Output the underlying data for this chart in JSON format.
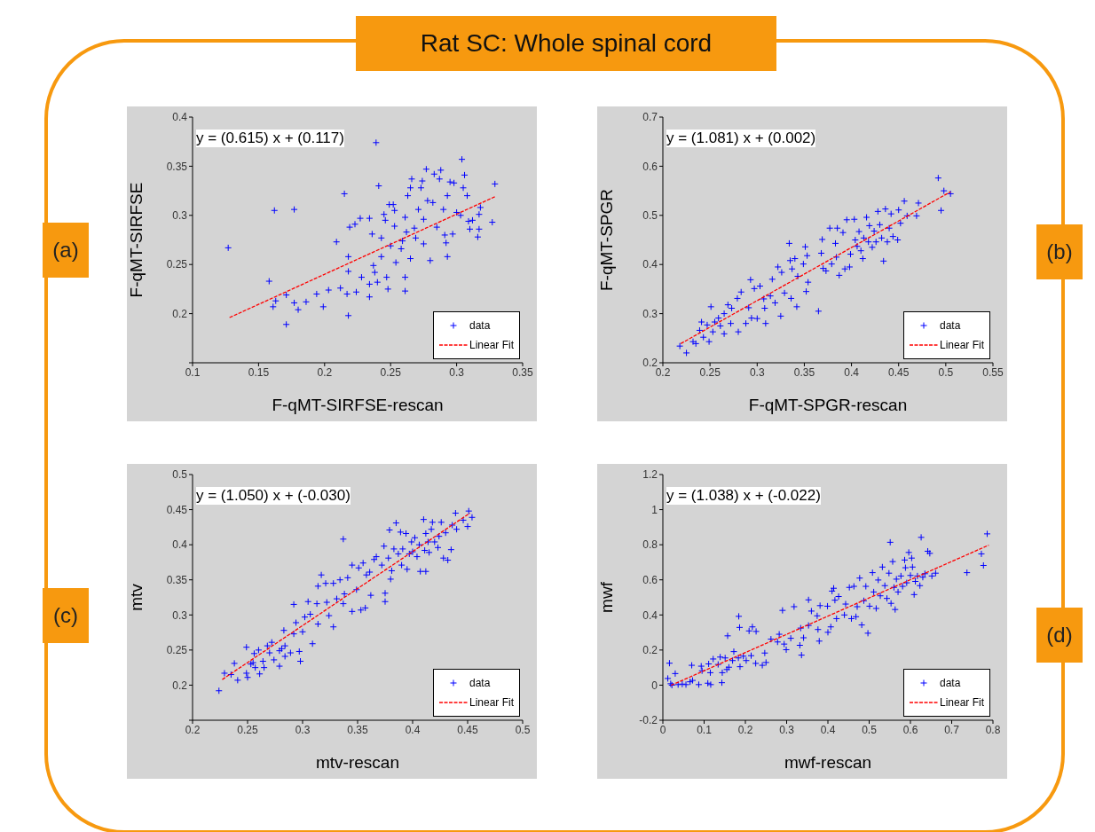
{
  "chart_data": [
    {
      "type": "scatter",
      "xlabel": "F-qMT-SIRFSE-rescan",
      "ylabel": "F-qMT-SIRFSE",
      "annotations": [
        "y = (0.615) x + (0.117)",
        "(a)",
        "Rat SC: Whole spinal cord"
      ],
      "xlim": [
        0.1,
        0.35
      ],
      "xticks": [
        0.1,
        0.15,
        0.2,
        0.25,
        0.3,
        0.35
      ],
      "ylim": [
        0.15,
        0.4
      ],
      "yticks": [
        {
          "value": 0.15,
          "label": null
        },
        0.2,
        0.25,
        0.3,
        0.35,
        0.4
      ],
      "legend": "bottom right",
      "series": [
        {
          "name": "data",
          "type": "scatter",
          "marker": "cross",
          "color": "#0000ff",
          "x": [
            0.127,
            0.162,
            0.177,
            0.158,
            0.161,
            0.163,
            0.171,
            0.171,
            0.177,
            0.18,
            0.186,
            0.194,
            0.199,
            0.203,
            0.209,
            0.215,
            0.212,
            0.217,
            0.218,
            0.218,
            0.219,
            0.218,
            0.223,
            0.227,
            0.224,
            0.228,
            0.234,
            0.234,
            0.234,
            0.236,
            0.237,
            0.238,
            0.241,
            0.239,
            0.243,
            0.24,
            0.243,
            0.245,
            0.246,
            0.247,
            0.248,
            0.249,
            0.252,
            0.25,
            0.253,
            0.253,
            0.254,
            0.258,
            0.259,
            0.261,
            0.261,
            0.261,
            0.262,
            0.263,
            0.265,
            0.265,
            0.266,
            0.268,
            0.269,
            0.271,
            0.273,
            0.274,
            0.275,
            0.275,
            0.277,
            0.278,
            0.28,
            0.282,
            0.283,
            0.285,
            0.287,
            0.288,
            0.29,
            0.291,
            0.292,
            0.293,
            0.293,
            0.295,
            0.297,
            0.298,
            0.3,
            0.303,
            0.304,
            0.305,
            0.306,
            0.308,
            0.309,
            0.31,
            0.312,
            0.316,
            0.317,
            0.318,
            0.317,
            0.327,
            0.329
          ],
          "values": [
            0.267,
            0.305,
            0.306,
            0.233,
            0.207,
            0.213,
            0.189,
            0.219,
            0.211,
            0.204,
            0.212,
            0.22,
            0.207,
            0.224,
            0.273,
            0.322,
            0.226,
            0.22,
            0.198,
            0.258,
            0.288,
            0.243,
            0.291,
            0.297,
            0.222,
            0.237,
            0.297,
            0.217,
            0.23,
            0.281,
            0.249,
            0.242,
            0.33,
            0.374,
            0.277,
            0.232,
            0.258,
            0.301,
            0.295,
            0.237,
            0.225,
            0.311,
            0.311,
            0.269,
            0.305,
            0.289,
            0.252,
            0.266,
            0.274,
            0.223,
            0.237,
            0.298,
            0.283,
            0.32,
            0.328,
            0.256,
            0.337,
            0.287,
            0.277,
            0.306,
            0.328,
            0.335,
            0.296,
            0.271,
            0.347,
            0.315,
            0.254,
            0.313,
            0.342,
            0.288,
            0.337,
            0.346,
            0.306,
            0.28,
            0.272,
            0.258,
            0.32,
            0.334,
            0.281,
            0.333,
            0.303,
            0.3,
            0.357,
            0.328,
            0.341,
            0.32,
            0.294,
            0.286,
            0.295,
            0.278,
            0.301,
            0.308,
            0.286,
            0.293,
            0.332
          ]
        },
        {
          "name": "Linear Fit",
          "type": "line",
          "color": "#ff0000",
          "line_style": "dashed",
          "x": [
            0.128,
            0.329
          ],
          "values": [
            0.196,
            0.319
          ]
        }
      ]
    },
    {
      "type": "scatter",
      "xlabel": "F-qMT-SPGR-rescan",
      "ylabel": "F-qMT-SPGR",
      "annotations": [
        "y = (1.081) x + (0.002)",
        "(b)"
      ],
      "xlim": [
        0.2,
        0.55
      ],
      "xticks": [
        0.2,
        0.25,
        0.3,
        0.35,
        0.4,
        0.45,
        0.5,
        0.55
      ],
      "ylim": [
        0.2,
        0.7
      ],
      "yticks": [
        0.2,
        0.3,
        0.4,
        0.5,
        0.6,
        0.7
      ],
      "legend": "bottom right",
      "series": [
        {
          "name": "data",
          "type": "scatter",
          "marker": "cross",
          "color": "#0000ff",
          "x": [
            0.218,
            0.225,
            0.232,
            0.235,
            0.239,
            0.241,
            0.243,
            0.247,
            0.249,
            0.251,
            0.253,
            0.255,
            0.259,
            0.261,
            0.265,
            0.265,
            0.269,
            0.272,
            0.273,
            0.28,
            0.279,
            0.283,
            0.288,
            0.291,
            0.293,
            0.294,
            0.297,
            0.3,
            0.303,
            0.307,
            0.308,
            0.309,
            0.314,
            0.316,
            0.319,
            0.322,
            0.325,
            0.326,
            0.329,
            0.334,
            0.336,
            0.335,
            0.337,
            0.34,
            0.342,
            0.343,
            0.349,
            0.351,
            0.352,
            0.353,
            0.354,
            0.365,
            0.368,
            0.369,
            0.37,
            0.373,
            0.377,
            0.379,
            0.383,
            0.384,
            0.385,
            0.387,
            0.391,
            0.393,
            0.395,
            0.398,
            0.399,
            0.403,
            0.404,
            0.406,
            0.408,
            0.41,
            0.412,
            0.413,
            0.416,
            0.418,
            0.419,
            0.422,
            0.424,
            0.426,
            0.428,
            0.43,
            0.432,
            0.434,
            0.436,
            0.438,
            0.44,
            0.442,
            0.444,
            0.449,
            0.45,
            0.452,
            0.456,
            0.459,
            0.469,
            0.471,
            0.492,
            0.495,
            0.498,
            0.505
          ],
          "values": [
            0.234,
            0.22,
            0.243,
            0.239,
            0.266,
            0.283,
            0.252,
            0.277,
            0.243,
            0.314,
            0.263,
            0.283,
            0.291,
            0.275,
            0.3,
            0.259,
            0.318,
            0.28,
            0.311,
            0.263,
            0.331,
            0.344,
            0.28,
            0.312,
            0.369,
            0.291,
            0.351,
            0.29,
            0.356,
            0.33,
            0.311,
            0.28,
            0.336,
            0.37,
            0.322,
            0.395,
            0.295,
            0.384,
            0.342,
            0.443,
            0.331,
            0.408,
            0.391,
            0.412,
            0.314,
            0.376,
            0.401,
            0.436,
            0.345,
            0.418,
            0.364,
            0.305,
            0.423,
            0.451,
            0.392,
            0.387,
            0.474,
            0.401,
            0.443,
            0.415,
            0.474,
            0.378,
            0.465,
            0.391,
            0.491,
            0.395,
            0.421,
            0.492,
            0.45,
            0.437,
            0.467,
            0.428,
            0.412,
            0.454,
            0.496,
            0.446,
            0.479,
            0.435,
            0.468,
            0.446,
            0.508,
            0.481,
            0.454,
            0.407,
            0.513,
            0.446,
            0.474,
            0.503,
            0.457,
            0.45,
            0.511,
            0.484,
            0.529,
            0.499,
            0.499,
            0.525,
            0.576,
            0.51,
            0.55,
            0.544
          ]
        },
        {
          "name": "Linear Fit",
          "type": "line",
          "color": "#ff0000",
          "line_style": "dashed",
          "x": [
            0.219,
            0.505
          ],
          "values": [
            0.239,
            0.548
          ]
        }
      ]
    },
    {
      "type": "scatter",
      "xlabel": "mtv-rescan",
      "ylabel": "mtv",
      "annotations": [
        "y = (1.050) x + (-0.030)",
        "(c)"
      ],
      "xlim": [
        0.2,
        0.5
      ],
      "xticks": [
        0.2,
        0.25,
        0.3,
        0.35,
        0.4,
        0.45,
        0.5
      ],
      "ylim": [
        0.15,
        0.5
      ],
      "yticks": [
        {
          "value": 0.15,
          "label": null
        },
        0.2,
        0.25,
        0.3,
        0.35,
        0.4,
        0.45,
        0.5
      ],
      "legend": "bottom right",
      "series": [
        {
          "name": "data",
          "type": "scatter",
          "marker": "cross",
          "color": "#0000ff",
          "x": [
            0.224,
            0.229,
            0.235,
            0.238,
            0.241,
            0.249,
            0.249,
            0.25,
            0.253,
            0.255,
            0.256,
            0.257,
            0.26,
            0.261,
            0.264,
            0.265,
            0.268,
            0.27,
            0.272,
            0.274,
            0.279,
            0.279,
            0.281,
            0.283,
            0.284,
            0.284,
            0.289,
            0.292,
            0.292,
            0.294,
            0.297,
            0.298,
            0.3,
            0.302,
            0.305,
            0.307,
            0.309,
            0.314,
            0.313,
            0.314,
            0.317,
            0.321,
            0.322,
            0.324,
            0.328,
            0.328,
            0.331,
            0.334,
            0.337,
            0.337,
            0.338,
            0.341,
            0.345,
            0.345,
            0.349,
            0.351,
            0.353,
            0.355,
            0.357,
            0.358,
            0.361,
            0.362,
            0.365,
            0.367,
            0.372,
            0.374,
            0.375,
            0.375,
            0.378,
            0.379,
            0.38,
            0.381,
            0.383,
            0.385,
            0.387,
            0.389,
            0.39,
            0.391,
            0.394,
            0.395,
            0.397,
            0.399,
            0.4,
            0.402,
            0.404,
            0.406,
            0.407,
            0.41,
            0.411,
            0.412,
            0.412,
            0.414,
            0.415,
            0.417,
            0.418,
            0.42,
            0.423,
            0.424,
            0.426,
            0.428,
            0.43,
            0.432,
            0.435,
            0.436,
            0.439,
            0.44,
            0.446,
            0.45,
            0.451,
            0.454
          ],
          "values": [
            0.192,
            0.217,
            0.215,
            0.231,
            0.207,
            0.254,
            0.217,
            0.211,
            0.23,
            0.232,
            0.245,
            0.225,
            0.25,
            0.216,
            0.234,
            0.225,
            0.256,
            0.246,
            0.261,
            0.236,
            0.249,
            0.227,
            0.252,
            0.278,
            0.241,
            0.256,
            0.246,
            0.315,
            0.273,
            0.289,
            0.248,
            0.234,
            0.276,
            0.297,
            0.319,
            0.301,
            0.259,
            0.287,
            0.316,
            0.341,
            0.357,
            0.345,
            0.318,
            0.299,
            0.283,
            0.345,
            0.323,
            0.35,
            0.408,
            0.316,
            0.33,
            0.353,
            0.371,
            0.305,
            0.336,
            0.367,
            0.307,
            0.374,
            0.31,
            0.357,
            0.361,
            0.328,
            0.379,
            0.383,
            0.371,
            0.398,
            0.331,
            0.319,
            0.381,
            0.421,
            0.351,
            0.363,
            0.394,
            0.431,
            0.387,
            0.418,
            0.371,
            0.394,
            0.416,
            0.365,
            0.387,
            0.404,
            0.39,
            0.41,
            0.383,
            0.4,
            0.362,
            0.436,
            0.392,
            0.416,
            0.362,
            0.404,
            0.389,
            0.422,
            0.432,
            0.404,
            0.396,
            0.412,
            0.432,
            0.381,
            0.417,
            0.378,
            0.393,
            0.428,
            0.445,
            0.422,
            0.435,
            0.426,
            0.448,
            0.439
          ]
        },
        {
          "name": "Linear Fit",
          "type": "line",
          "color": "#ff0000",
          "line_style": "dashed",
          "x": [
            0.227,
            0.452
          ],
          "values": [
            0.208,
            0.445
          ]
        }
      ]
    },
    {
      "type": "scatter",
      "xlabel": "mwf-rescan",
      "ylabel": "mwf",
      "annotations": [
        "y = (1.038) x + (-0.022)",
        "(d)"
      ],
      "xlim": [
        0,
        0.8
      ],
      "xticks": [
        0,
        0.1,
        0.2,
        0.3,
        0.4,
        0.5,
        0.6,
        0.7,
        0.8
      ],
      "ylim": [
        -0.2,
        1.2
      ],
      "yticks": [
        -0.2,
        0,
        0.2,
        0.4,
        0.6,
        0.8,
        1,
        1.2
      ],
      "legend": "bottom right",
      "series": [
        {
          "name": "data",
          "type": "scatter",
          "marker": "cross",
          "color": "#0000ff",
          "x": [
            0.012,
            0.016,
            0.019,
            0.022,
            0.03,
            0.037,
            0.047,
            0.056,
            0.066,
            0.07,
            0.072,
            0.087,
            0.093,
            0.095,
            0.109,
            0.111,
            0.115,
            0.116,
            0.122,
            0.134,
            0.139,
            0.143,
            0.144,
            0.151,
            0.155,
            0.157,
            0.16,
            0.169,
            0.172,
            0.183,
            0.184,
            0.186,
            0.187,
            0.195,
            0.202,
            0.209,
            0.214,
            0.217,
            0.226,
            0.225,
            0.241,
            0.247,
            0.25,
            0.262,
            0.278,
            0.282,
            0.29,
            0.294,
            0.299,
            0.31,
            0.318,
            0.332,
            0.334,
            0.336,
            0.341,
            0.353,
            0.353,
            0.36,
            0.374,
            0.376,
            0.379,
            0.381,
            0.399,
            0.4,
            0.407,
            0.41,
            0.414,
            0.417,
            0.421,
            0.426,
            0.44,
            0.443,
            0.452,
            0.457,
            0.463,
            0.468,
            0.471,
            0.477,
            0.482,
            0.487,
            0.492,
            0.497,
            0.501,
            0.508,
            0.511,
            0.517,
            0.522,
            0.527,
            0.532,
            0.538,
            0.543,
            0.548,
            0.551,
            0.553,
            0.557,
            0.56,
            0.563,
            0.566,
            0.57,
            0.577,
            0.581,
            0.586,
            0.588,
            0.591,
            0.596,
            0.6,
            0.603,
            0.605,
            0.609,
            0.612,
            0.617,
            0.623,
            0.626,
            0.63,
            0.635,
            0.642,
            0.647,
            0.652,
            0.661,
            0.737,
            0.772,
            0.777,
            0.786
          ],
          "values": [
            0.038,
            0.125,
            0.008,
            0.0,
            0.066,
            0.003,
            0.006,
            0.003,
            0.019,
            0.113,
            0.027,
            0.003,
            0.108,
            0.082,
            0.011,
            0.121,
            0.071,
            0.003,
            0.149,
            0.118,
            0.16,
            0.014,
            0.071,
            0.155,
            0.089,
            0.281,
            0.102,
            0.14,
            0.191,
            0.155,
            0.392,
            0.329,
            0.105,
            0.165,
            0.14,
            0.309,
            0.168,
            0.332,
            0.306,
            0.124,
            0.113,
            0.183,
            0.129,
            0.262,
            0.246,
            0.29,
            0.426,
            0.234,
            0.202,
            0.267,
            0.447,
            0.227,
            0.325,
            0.171,
            0.27,
            0.486,
            0.34,
            0.422,
            0.395,
            0.317,
            0.251,
            0.453,
            0.45,
            0.301,
            0.332,
            0.536,
            0.552,
            0.484,
            0.379,
            0.505,
            0.4,
            0.462,
            0.557,
            0.379,
            0.563,
            0.39,
            0.447,
            0.61,
            0.343,
            0.481,
            0.563,
            0.296,
            0.45,
            0.641,
            0.531,
            0.437,
            0.599,
            0.509,
            0.673,
            0.567,
            0.494,
            0.638,
            0.814,
            0.466,
            0.704,
            0.557,
            0.431,
            0.604,
            0.531,
            0.622,
            0.563,
            0.713,
            0.669,
            0.583,
            0.756,
            0.625,
            0.724,
            0.673,
            0.516,
            0.591,
            0.622,
            0.567,
            0.842,
            0.615,
            0.635,
            0.763,
            0.751,
            0.622,
            0.638,
            0.641,
            0.748,
            0.682,
            0.862
          ]
        },
        {
          "name": "Linear Fit",
          "type": "line",
          "color": "#ff0000",
          "line_style": "dashed",
          "x": [
            0.02,
            0.79
          ],
          "values": [
            -0.001,
            0.798
          ]
        }
      ]
    }
  ]
}
